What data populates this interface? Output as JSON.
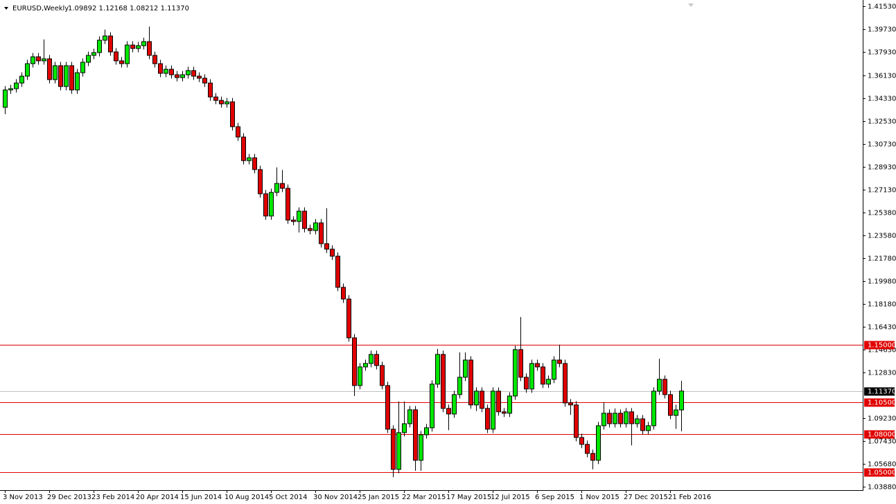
{
  "chart_data": {
    "type": "candlestick",
    "title": "EURUSD,Weekly",
    "ohlc_text": "1.09892 1.12168 1.08212 1.11370",
    "up_color": "#00e600",
    "down_color": "#e00000",
    "level_color": "#e00000",
    "current_color": "#c0c0c0",
    "ylim": [
      1.036,
      1.4202
    ],
    "yticks": [
      {
        "value": 1.4153,
        "label": "1.41530"
      },
      {
        "value": 1.3973,
        "label": "1.39730"
      },
      {
        "value": 1.3793,
        "label": "1.37930"
      },
      {
        "value": 1.3613,
        "label": "1.36130"
      },
      {
        "value": 1.3433,
        "label": "1.34330"
      },
      {
        "value": 1.3253,
        "label": "1.32530"
      },
      {
        "value": 1.3073,
        "label": "1.30730"
      },
      {
        "value": 1.2893,
        "label": "1.28930"
      },
      {
        "value": 1.2713,
        "label": "1.27130"
      },
      {
        "value": 1.2538,
        "label": "1.25380"
      },
      {
        "value": 1.2358,
        "label": "1.23580"
      },
      {
        "value": 1.2178,
        "label": "1.21780"
      },
      {
        "value": 1.1998,
        "label": "1.19980"
      },
      {
        "value": 1.1818,
        "label": "1.18180"
      },
      {
        "value": 1.1643,
        "label": "1.16430"
      },
      {
        "value": 1.1463,
        "label": "1.14630"
      },
      {
        "value": 1.1283,
        "label": "1.12830"
      },
      {
        "value": 1.0923,
        "label": "1.09230"
      },
      {
        "value": 1.0743,
        "label": "1.07430"
      },
      {
        "value": 1.0568,
        "label": "1.05680"
      },
      {
        "value": 1.0388,
        "label": "1.03880"
      }
    ],
    "levels": [
      {
        "value": 1.15,
        "label": "1.15000"
      },
      {
        "value": 1.105,
        "label": "1.10500"
      },
      {
        "value": 1.08,
        "label": "1.08000"
      },
      {
        "value": 1.05,
        "label": "1.05000"
      }
    ],
    "current_price": {
      "value": 1.1137,
      "label": "1.11370"
    },
    "categories": [
      "3 Nov 2013",
      null,
      null,
      null,
      null,
      null,
      null,
      null,
      "29 Dec 2013",
      null,
      null,
      null,
      null,
      null,
      null,
      null,
      "23 Feb 2014",
      null,
      null,
      null,
      null,
      null,
      null,
      null,
      "20 Apr 2014",
      null,
      null,
      null,
      null,
      null,
      null,
      null,
      "15 Jun 2014",
      null,
      null,
      null,
      null,
      null,
      null,
      null,
      "10 Aug 2014",
      null,
      null,
      null,
      null,
      null,
      null,
      null,
      "5 Oct 2014",
      null,
      null,
      null,
      null,
      null,
      null,
      null,
      "30 Nov 2014",
      null,
      null,
      null,
      null,
      null,
      null,
      null,
      "25 Jan 2015",
      null,
      null,
      null,
      null,
      null,
      null,
      null,
      "22 Mar 2015",
      null,
      null,
      null,
      null,
      null,
      null,
      null,
      "17 May 2015",
      null,
      null,
      null,
      null,
      null,
      null,
      null,
      "12 Jul 2015",
      null,
      null,
      null,
      null,
      null,
      null,
      null,
      "6 Sep 2015",
      null,
      null,
      null,
      null,
      null,
      null,
      null,
      "1 Nov 2015",
      null,
      null,
      null,
      null,
      null,
      null,
      null,
      "27 Dec 2015",
      null,
      null,
      null,
      null,
      null,
      null,
      null,
      "21 Feb 2016",
      null,
      null
    ],
    "candles": [
      [
        1.3361,
        1.3527,
        1.3307,
        1.3497
      ],
      [
        1.3497,
        1.3537,
        1.3467,
        1.3507
      ],
      [
        1.3507,
        1.3581,
        1.3477,
        1.3551
      ],
      [
        1.3551,
        1.3635,
        1.3521,
        1.3605
      ],
      [
        1.3605,
        1.3733,
        1.3575,
        1.3703
      ],
      [
        1.3703,
        1.3787,
        1.3673,
        1.3757
      ],
      [
        1.3757,
        1.3787,
        1.3695,
        1.3725
      ],
      [
        1.3725,
        1.3893,
        1.3695,
        1.3741
      ],
      [
        1.3741,
        1.3771,
        1.3548,
        1.3578
      ],
      [
        1.3578,
        1.3717,
        1.3548,
        1.3687
      ],
      [
        1.3687,
        1.3717,
        1.3494,
        1.3524
      ],
      [
        1.3524,
        1.3717,
        1.3494,
        1.3687
      ],
      [
        1.3687,
        1.3717,
        1.3467,
        1.3497
      ],
      [
        1.3497,
        1.3662,
        1.3467,
        1.3632
      ],
      [
        1.3632,
        1.3744,
        1.3602,
        1.3714
      ],
      [
        1.3714,
        1.3798,
        1.3684,
        1.3768
      ],
      [
        1.3768,
        1.382,
        1.3738,
        1.379
      ],
      [
        1.379,
        1.3917,
        1.376,
        1.3887
      ],
      [
        1.3887,
        1.397,
        1.3857,
        1.392
      ],
      [
        1.392,
        1.395,
        1.3765,
        1.3795
      ],
      [
        1.3795,
        1.3825,
        1.3695,
        1.3725
      ],
      [
        1.3725,
        1.3755,
        1.3673,
        1.3703
      ],
      [
        1.3703,
        1.3879,
        1.3673,
        1.3849
      ],
      [
        1.3849,
        1.3879,
        1.3792,
        1.3822
      ],
      [
        1.3822,
        1.3874,
        1.3792,
        1.3844
      ],
      [
        1.3844,
        1.3906,
        1.3814,
        1.3876
      ],
      [
        1.3876,
        1.3993,
        1.3738,
        1.3768
      ],
      [
        1.3768,
        1.3798,
        1.3673,
        1.3703
      ],
      [
        1.3703,
        1.3733,
        1.3597,
        1.3627
      ],
      [
        1.3627,
        1.3689,
        1.3597,
        1.3659
      ],
      [
        1.3659,
        1.3689,
        1.3586,
        1.3616
      ],
      [
        1.3616,
        1.3646,
        1.3564,
        1.3594
      ],
      [
        1.3594,
        1.3646,
        1.3564,
        1.3616
      ],
      [
        1.3616,
        1.3679,
        1.3586,
        1.3649
      ],
      [
        1.3649,
        1.3679,
        1.3575,
        1.3605
      ],
      [
        1.3605,
        1.3635,
        1.3559,
        1.3589
      ],
      [
        1.3589,
        1.3619,
        1.3521,
        1.3551
      ],
      [
        1.3551,
        1.3581,
        1.3412,
        1.3442
      ],
      [
        1.3442,
        1.3472,
        1.3385,
        1.3415
      ],
      [
        1.3415,
        1.3445,
        1.3358,
        1.3388
      ],
      [
        1.3388,
        1.3434,
        1.3358,
        1.3404
      ],
      [
        1.3404,
        1.3434,
        1.3179,
        1.3209
      ],
      [
        1.3209,
        1.3239,
        1.3098,
        1.3128
      ],
      [
        1.3128,
        1.3158,
        1.2913,
        1.2943
      ],
      [
        1.2943,
        1.2995,
        1.2913,
        1.2965
      ],
      [
        1.2965,
        1.2995,
        1.2843,
        1.2873
      ],
      [
        1.2873,
        1.2903,
        1.2653,
        1.2683
      ],
      [
        1.2683,
        1.2713,
        1.2479,
        1.2509
      ],
      [
        1.2509,
        1.2724,
        1.2479,
        1.2694
      ],
      [
        1.2694,
        1.289,
        1.2664,
        1.2764
      ],
      [
        1.2764,
        1.287,
        1.2696,
        1.2726
      ],
      [
        1.2726,
        1.2756,
        1.2447,
        1.2477
      ],
      [
        1.2477,
        1.2507,
        1.2436,
        1.2466
      ],
      [
        1.2466,
        1.2577,
        1.238,
        1.2547
      ],
      [
        1.2547,
        1.2577,
        1.2381,
        1.2411
      ],
      [
        1.2411,
        1.2441,
        1.2365,
        1.2395
      ],
      [
        1.2395,
        1.2485,
        1.2365,
        1.2455
      ],
      [
        1.2455,
        1.2485,
        1.2262,
        1.2292
      ],
      [
        1.2292,
        1.257,
        1.2219,
        1.2249
      ],
      [
        1.2249,
        1.2279,
        1.2164,
        1.2194
      ],
      [
        1.2194,
        1.2224,
        1.192,
        1.195
      ],
      [
        1.195,
        1.198,
        1.1828,
        1.1858
      ],
      [
        1.1858,
        1.1888,
        1.1524,
        1.1554
      ],
      [
        1.1554,
        1.1584,
        1.1098,
        1.118
      ],
      [
        1.118,
        1.1356,
        1.115,
        1.1326
      ],
      [
        1.1326,
        1.1383,
        1.1296,
        1.1353
      ],
      [
        1.1353,
        1.1454,
        1.1323,
        1.1424
      ],
      [
        1.1424,
        1.1454,
        1.1307,
        1.1337
      ],
      [
        1.1337,
        1.1367,
        1.115,
        1.118
      ],
      [
        1.118,
        1.121,
        1.0808,
        1.0838
      ],
      [
        1.0838,
        1.0868,
        1.0462,
        1.0523
      ],
      [
        1.0523,
        1.1055,
        1.0493,
        1.0811
      ],
      [
        1.0811,
        1.1055,
        1.0781,
        1.0881
      ],
      [
        1.0881,
        1.102,
        1.0851,
        1.099
      ],
      [
        1.099,
        1.102,
        1.0512,
        1.0594
      ],
      [
        1.0594,
        1.0824,
        1.0512,
        1.0794
      ],
      [
        1.0794,
        1.0879,
        1.0764,
        1.0849
      ],
      [
        1.0849,
        1.1221,
        1.0819,
        1.1191
      ],
      [
        1.1191,
        1.1467,
        1.1161,
        1.1424
      ],
      [
        1.1424,
        1.1454,
        1.0971,
        1.1001
      ],
      [
        1.1001,
        1.1031,
        1.083,
        1.0957
      ],
      [
        1.0957,
        1.1139,
        1.0927,
        1.1109
      ],
      [
        1.1109,
        1.144,
        1.1079,
        1.1245
      ],
      [
        1.1245,
        1.144,
        1.1215,
        1.138
      ],
      [
        1.138,
        1.141,
        1.0998,
        1.1028
      ],
      [
        1.1028,
        1.1166,
        1.098,
        1.1136
      ],
      [
        1.1136,
        1.1166,
        1.0971,
        1.1001
      ],
      [
        1.1001,
        1.1031,
        1.0808,
        1.0838
      ],
      [
        1.0838,
        1.1166,
        1.0808,
        1.1136
      ],
      [
        1.1136,
        1.1166,
        1.0944,
        1.0974
      ],
      [
        1.0974,
        1.1004,
        1.0933,
        1.0963
      ],
      [
        1.0963,
        1.1128,
        1.0933,
        1.1098
      ],
      [
        1.1098,
        1.1492,
        1.1068,
        1.1462
      ],
      [
        1.1462,
        1.1717,
        1.1215,
        1.1245
      ],
      [
        1.1245,
        1.1275,
        1.1123,
        1.1153
      ],
      [
        1.1153,
        1.1383,
        1.1123,
        1.1353
      ],
      [
        1.1353,
        1.1383,
        1.1296,
        1.1326
      ],
      [
        1.1326,
        1.1356,
        1.1161,
        1.1191
      ],
      [
        1.1191,
        1.1259,
        1.1161,
        1.1229
      ],
      [
        1.1229,
        1.141,
        1.1199,
        1.138
      ],
      [
        1.138,
        1.15,
        1.1323,
        1.1353
      ],
      [
        1.1353,
        1.1383,
        1.1014,
        1.1044
      ],
      [
        1.1044,
        1.1074,
        1.095,
        1.1028
      ],
      [
        1.1028,
        1.1058,
        1.0743,
        1.0773
      ],
      [
        1.0773,
        1.0803,
        1.0689,
        1.0719
      ],
      [
        1.0719,
        1.0749,
        1.0618,
        1.0648
      ],
      [
        1.0648,
        1.0678,
        1.0523,
        1.0594
      ],
      [
        1.0594,
        1.0895,
        1.0564,
        1.0865
      ],
      [
        1.0865,
        1.105,
        1.0835,
        1.0963
      ],
      [
        1.0963,
        1.0993,
        1.0851,
        1.0881
      ],
      [
        1.0881,
        1.1,
        1.0851,
        1.0963
      ],
      [
        1.0963,
        1.0993,
        1.0851,
        1.0881
      ],
      [
        1.0881,
        1.1004,
        1.0851,
        1.0974
      ],
      [
        1.0974,
        1.1004,
        1.0711,
        1.0881
      ],
      [
        1.0881,
        1.0949,
        1.0851,
        1.0919
      ],
      [
        1.0919,
        1.0949,
        1.0797,
        1.0827
      ],
      [
        1.0827,
        1.0895,
        1.0797,
        1.0865
      ],
      [
        1.0865,
        1.1166,
        1.0835,
        1.1136
      ],
      [
        1.1136,
        1.139,
        1.1106,
        1.1229
      ],
      [
        1.1229,
        1.1259,
        1.1079,
        1.1109
      ],
      [
        1.1109,
        1.1139,
        1.0916,
        1.0946
      ],
      [
        1.0946,
        1.103,
        1.084,
        1.0989
      ],
      [
        1.09892,
        1.12168,
        1.08212,
        1.1137
      ]
    ]
  }
}
